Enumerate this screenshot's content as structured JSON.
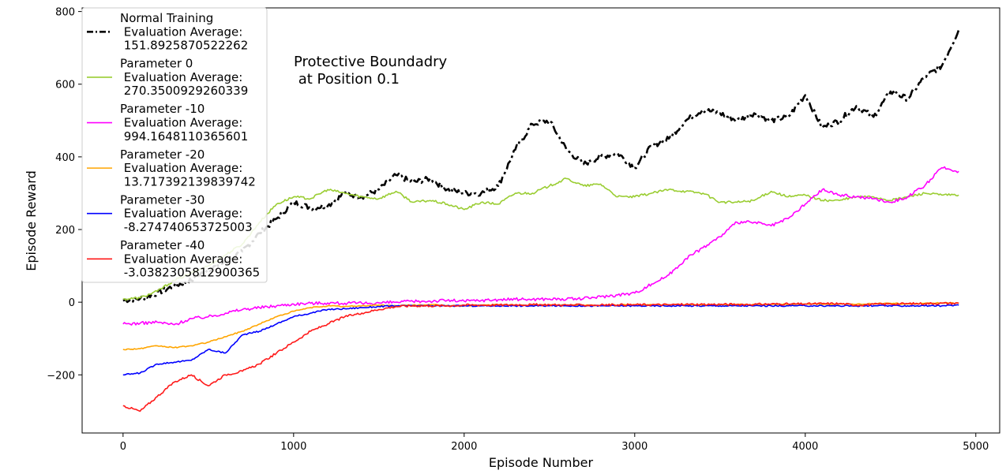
{
  "chart_data": {
    "type": "line",
    "title": "",
    "xlabel": "Episode Number",
    "ylabel": "Episode Reward",
    "xlim": [
      -240,
      5140
    ],
    "ylim": [
      -360,
      810
    ],
    "x_ticks": [
      0,
      1000,
      2000,
      3000,
      4000,
      5000
    ],
    "y_ticks": [
      -200,
      0,
      200,
      400,
      600,
      800
    ],
    "x_tick_labels": [
      "0",
      "1000",
      "2000",
      "3000",
      "4000",
      "5000"
    ],
    "y_tick_labels": [
      "−200",
      "0",
      "200",
      "400",
      "600",
      "800"
    ],
    "grid": false,
    "legend_position": "upper-left",
    "annotation": [
      "Protective Boundadry",
      " at Position 0.1"
    ],
    "series": [
      {
        "name": "Normal Training",
        "legend_lines": [
          "Normal Training",
          " Evaluation Average:",
          " 151.8925870522262"
        ],
        "color": "#000000",
        "dash": "dashdot",
        "x": [
          0,
          100,
          200,
          300,
          400,
          500,
          600,
          700,
          800,
          900,
          1000,
          1100,
          1200,
          1300,
          1400,
          1500,
          1600,
          1700,
          1800,
          1900,
          2000,
          2100,
          2200,
          2300,
          2400,
          2500,
          2600,
          2700,
          2800,
          2900,
          3000,
          3100,
          3200,
          3300,
          3400,
          3500,
          3600,
          3700,
          3800,
          3900,
          4000,
          4100,
          4200,
          4300,
          4400,
          4500,
          4600,
          4700,
          4800,
          4900
        ],
        "y": [
          5,
          10,
          25,
          45,
          60,
          90,
          110,
          140,
          190,
          230,
          275,
          260,
          265,
          300,
          290,
          310,
          350,
          330,
          340,
          310,
          300,
          300,
          320,
          420,
          490,
          500,
          420,
          380,
          400,
          410,
          370,
          430,
          450,
          500,
          530,
          520,
          500,
          520,
          500,
          510,
          570,
          480,
          500,
          540,
          510,
          580,
          560,
          620,
          650,
          750
        ]
      },
      {
        "name": "Parameter 0",
        "legend_lines": [
          "Parameter 0",
          " Evaluation Average:",
          " 270.3500929260339"
        ],
        "color": "#9acd32",
        "dash": "solid",
        "x": [
          0,
          100,
          200,
          300,
          400,
          500,
          600,
          700,
          800,
          900,
          1000,
          1100,
          1200,
          1300,
          1400,
          1500,
          1600,
          1700,
          1800,
          1900,
          2000,
          2100,
          2200,
          2300,
          2400,
          2500,
          2600,
          2700,
          2800,
          2900,
          3000,
          3100,
          3200,
          3300,
          3400,
          3500,
          3600,
          3700,
          3800,
          3900,
          4000,
          4100,
          4200,
          4300,
          4400,
          4500,
          4600,
          4700,
          4800,
          4900
        ],
        "y": [
          8,
          12,
          30,
          60,
          80,
          100,
          130,
          160,
          220,
          270,
          290,
          285,
          310,
          300,
          290,
          285,
          305,
          275,
          280,
          270,
          255,
          275,
          270,
          300,
          300,
          320,
          340,
          320,
          325,
          290,
          290,
          300,
          310,
          305,
          300,
          275,
          275,
          280,
          305,
          290,
          295,
          280,
          280,
          290,
          290,
          280,
          290,
          300,
          295,
          295
        ]
      },
      {
        "name": "Parameter -10",
        "legend_lines": [
          "Parameter -10",
          " Evaluation Average:",
          " 994.1648110365601"
        ],
        "color": "#ff00ff",
        "dash": "solid",
        "x": [
          0,
          100,
          200,
          300,
          400,
          500,
          600,
          700,
          800,
          900,
          1000,
          1100,
          1200,
          1300,
          1400,
          1500,
          1600,
          1700,
          1800,
          1900,
          2000,
          2100,
          2200,
          2300,
          2400,
          2500,
          2600,
          2700,
          2800,
          2900,
          3000,
          3100,
          3200,
          3300,
          3400,
          3500,
          3600,
          3700,
          3800,
          3900,
          4000,
          4100,
          4200,
          4300,
          4400,
          4500,
          4600,
          4700,
          4800,
          4900
        ],
        "y": [
          -60,
          -58,
          -55,
          -62,
          -45,
          -40,
          -30,
          -20,
          -15,
          -10,
          -5,
          -3,
          -2,
          -3,
          -3,
          -2,
          0,
          2,
          3,
          5,
          3,
          5,
          7,
          8,
          8,
          9,
          8,
          10,
          15,
          20,
          25,
          50,
          75,
          120,
          150,
          180,
          220,
          220,
          210,
          230,
          270,
          310,
          295,
          290,
          285,
          275,
          290,
          320,
          370,
          360
        ]
      },
      {
        "name": "Parameter -20",
        "legend_lines": [
          "Parameter -20",
          " Evaluation Average:",
          " 13.717392139839742"
        ],
        "color": "#ffa500",
        "dash": "solid",
        "x": [
          0,
          100,
          200,
          300,
          400,
          500,
          600,
          700,
          800,
          900,
          1000,
          1100,
          1200,
          1300,
          1400,
          1500,
          1600,
          1700,
          1800,
          1900,
          2000,
          2100,
          2200,
          2300,
          2400,
          2500,
          2600,
          2700,
          2800,
          2900,
          3000,
          3100,
          3200,
          3300,
          3400,
          3500,
          3600,
          3700,
          3800,
          3900,
          4000,
          4100,
          4200,
          4300,
          4400,
          4500,
          4600,
          4700,
          4800,
          4900
        ],
        "y": [
          -130,
          -128,
          -120,
          -125,
          -120,
          -110,
          -95,
          -80,
          -60,
          -40,
          -25,
          -15,
          -10,
          -12,
          -10,
          -8,
          -10,
          -8,
          -7,
          -9,
          -10,
          -8,
          -7,
          -8,
          -9,
          -7,
          -8,
          -8,
          -9,
          -8,
          -7,
          -7,
          -8,
          -6,
          -8,
          -7,
          -6,
          -7,
          -6,
          -6,
          -5,
          -6,
          -5,
          -6,
          -4,
          -3,
          -5,
          -3,
          -2,
          -3
        ]
      },
      {
        "name": "Parameter -30",
        "legend_lines": [
          "Parameter -30",
          " Evaluation Average:",
          " -8.274740653725003"
        ],
        "color": "#0000ff",
        "dash": "solid",
        "x": [
          0,
          100,
          200,
          300,
          400,
          500,
          600,
          700,
          800,
          900,
          1000,
          1100,
          1200,
          1300,
          1400,
          1500,
          1600,
          1700,
          1800,
          1900,
          2000,
          2100,
          2200,
          2300,
          2400,
          2500,
          2600,
          2700,
          2800,
          2900,
          3000,
          3100,
          3200,
          3300,
          3400,
          3500,
          3600,
          3700,
          3800,
          3900,
          4000,
          4100,
          4200,
          4300,
          4400,
          4500,
          4600,
          4700,
          4800,
          4900
        ],
        "y": [
          -200,
          -195,
          -170,
          -165,
          -160,
          -130,
          -140,
          -90,
          -80,
          -60,
          -40,
          -30,
          -20,
          -18,
          -15,
          -12,
          -10,
          -10,
          -10,
          -10,
          -10,
          -10,
          -10,
          -10,
          -10,
          -10,
          -10,
          -10,
          -10,
          -10,
          -10,
          -10,
          -10,
          -10,
          -10,
          -10,
          -10,
          -10,
          -10,
          -10,
          -10,
          -10,
          -10,
          -10,
          -10,
          -10,
          -10,
          -10,
          -10,
          -8
        ]
      },
      {
        "name": "Parameter -40",
        "legend_lines": [
          "Parameter -40",
          " Evaluation Average:",
          " -3.0382305812900365"
        ],
        "color": "#ff1a1a",
        "dash": "solid",
        "x": [
          0,
          100,
          200,
          300,
          400,
          500,
          600,
          700,
          800,
          900,
          1000,
          1100,
          1200,
          1300,
          1400,
          1500,
          1600,
          1700,
          1800,
          1900,
          2000,
          2100,
          2200,
          2300,
          2400,
          2500,
          2600,
          2700,
          2800,
          2900,
          3000,
          3100,
          3200,
          3300,
          3400,
          3500,
          3600,
          3700,
          3800,
          3900,
          4000,
          4100,
          4200,
          4300,
          4400,
          4500,
          4600,
          4700,
          4800,
          4900
        ],
        "y": [
          -285,
          -300,
          -260,
          -220,
          -200,
          -230,
          -200,
          -190,
          -170,
          -140,
          -110,
          -80,
          -60,
          -40,
          -30,
          -20,
          -12,
          -10,
          -10,
          -10,
          -8,
          -8,
          -8,
          -7,
          -7,
          -7,
          -8,
          -8,
          -8,
          -7,
          -7,
          -7,
          -7,
          -6,
          -6,
          -6,
          -6,
          -6,
          -5,
          -5,
          -5,
          -4,
          -4,
          -8,
          -6,
          -5,
          -4,
          -4,
          -3,
          -3
        ]
      }
    ]
  }
}
